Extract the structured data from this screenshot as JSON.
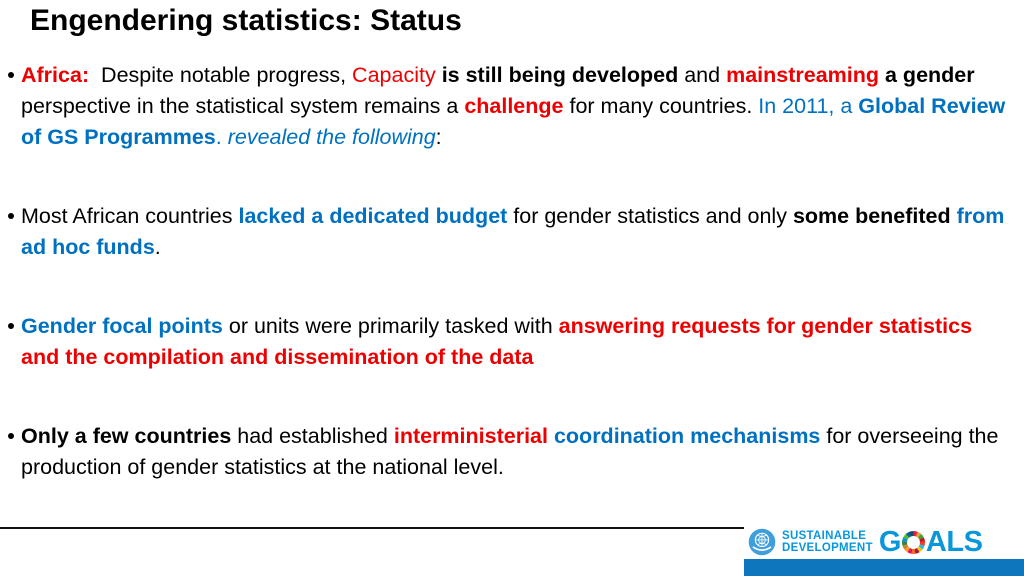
{
  "colors": {
    "black": "#000000",
    "red": "#ee0000",
    "blue": "#0070c0",
    "sdg_blue": "#0a97d9",
    "sdg_bar": "#0e76bc"
  },
  "slide": {
    "title": "Engendering statistics: Status"
  },
  "bullets": [
    {
      "segments": [
        {
          "t": "Africa:",
          "c": "red",
          "b": true
        },
        {
          "t": "  Despite notable progress, "
        },
        {
          "t": "Capacity",
          "c": "red"
        },
        {
          "t": " "
        },
        {
          "t": "is still being developed",
          "b": true
        },
        {
          "t": " and "
        },
        {
          "t": "mainstreaming",
          "c": "red",
          "b": true
        },
        {
          "t": " "
        },
        {
          "t": "a gender",
          "b": true
        },
        {
          "t": " perspective in the statistical system remains a "
        },
        {
          "t": "challenge",
          "c": "red",
          "b": true
        },
        {
          "t": " for many countries. "
        },
        {
          "t": "In 2011, a ",
          "c": "blue"
        },
        {
          "t": "Global Review of GS Programmes",
          "c": "blue",
          "b": true
        },
        {
          "t": ". ",
          "c": "blue"
        },
        {
          "t": "revealed the following",
          "c": "blue",
          "i": true
        },
        {
          "t": ":"
        }
      ]
    },
    {
      "segments": [
        {
          "t": "Most African countries "
        },
        {
          "t": "lacked a dedicated budget",
          "c": "blue",
          "b": true
        },
        {
          "t": " for gender statistics and only "
        },
        {
          "t": "some benefited",
          "b": true
        },
        {
          "t": " "
        },
        {
          "t": "from ad hoc funds",
          "c": "blue",
          "b": true
        },
        {
          "t": "."
        }
      ]
    },
    {
      "segments": [
        {
          "t": "Gender focal points",
          "c": "blue",
          "b": true
        },
        {
          "t": " or units were primarily tasked with "
        },
        {
          "t": "answering requests for gender statistics and the compilation and dissemination of the data",
          "c": "red",
          "b": true
        }
      ]
    },
    {
      "segments": [
        {
          "t": "Only a few countries",
          "b": true
        },
        {
          "t": " had established "
        },
        {
          "t": "interministerial",
          "c": "red",
          "b": true
        },
        {
          "t": " "
        },
        {
          "t": "coordination mechanisms",
          "c": "blue",
          "b": true
        },
        {
          "t": " for overseeing the production of gender statistics at the national level."
        }
      ]
    }
  ],
  "footer": {
    "sdg": {
      "line1": "SUSTAINABLE",
      "line2": "DEVELOPMENT",
      "goals_g": "G",
      "goals_als": "ALS",
      "wheel_colors": [
        "#e5243b",
        "#dda63a",
        "#4c9f38",
        "#c5192d",
        "#ff3a21",
        "#26bde2",
        "#fcc30b",
        "#a21942",
        "#fd6925",
        "#dd1367",
        "#fd9d24",
        "#bf8b2e",
        "#3f7e44",
        "#0a97d9",
        "#56c02b",
        "#00689d",
        "#19486a"
      ]
    }
  }
}
